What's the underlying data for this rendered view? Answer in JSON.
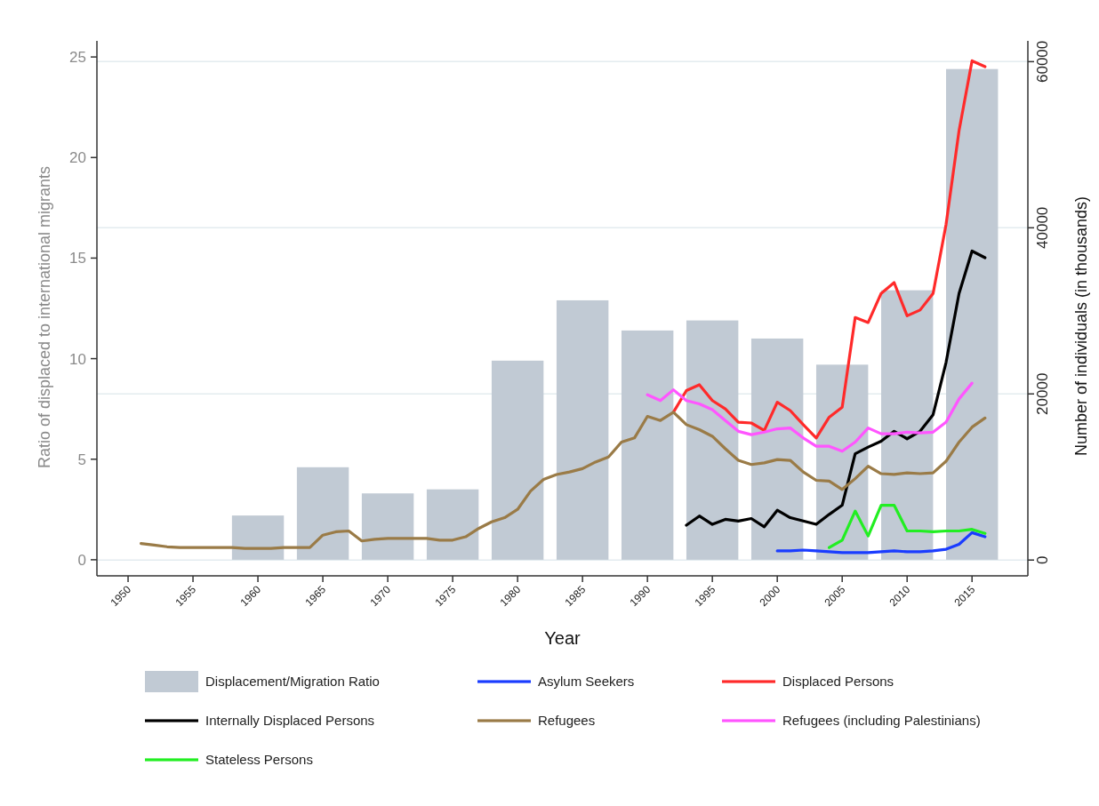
{
  "chart_data": {
    "type": "line",
    "xlabel": "Year",
    "ylabel": "Ratio of displaced to international migrants",
    "y2label": "Number of individuals (in thousands)",
    "xlim": [
      1947.6,
      2019.3
    ],
    "xticks": [
      1950,
      1955,
      1960,
      1965,
      1970,
      1975,
      1980,
      1985,
      1990,
      1995,
      2000,
      2005,
      2010,
      2015
    ],
    "ylim": [
      -0.8,
      25.8
    ],
    "yticks": [
      0,
      5,
      10,
      15,
      20,
      25
    ],
    "y2lim": [
      -1900,
      62500
    ],
    "y2ticks": [
      0,
      20000,
      40000,
      60000
    ],
    "grid": "y",
    "legend": "bottom",
    "line_style": "solid",
    "series": [
      {
        "name": "Displacement/Migration Ratio",
        "type": "bar",
        "axis": "y",
        "color": "#c1cad4",
        "x": [
          1960,
          1965,
          1970,
          1975,
          1980,
          1985,
          1990,
          1995,
          2000,
          2005,
          2010,
          2015
        ],
        "values": [
          2.2,
          4.6,
          3.3,
          3.5,
          9.9,
          12.9,
          11.4,
          11.9,
          11.0,
          9.7,
          13.4,
          24.4
        ]
      },
      {
        "name": "Asylum Seekers",
        "axis": "y2",
        "color": "#1a3cff",
        "x": [
          2000,
          2001,
          2002,
          2003,
          2004,
          2005,
          2006,
          2007,
          2008,
          2009,
          2010,
          2011,
          2012,
          2013,
          2014,
          2015,
          2016
        ],
        "values": [
          1100,
          1100,
          1200,
          1100,
          1000,
          900,
          900,
          900,
          1000,
          1100,
          1000,
          1000,
          1100,
          1300,
          1900,
          3300,
          2800
        ]
      },
      {
        "name": "Displaced Persons",
        "axis": "y2",
        "color": "#ff2a2a",
        "x": [
          1992,
          1993,
          1994,
          1995,
          1996,
          1997,
          1998,
          1999,
          2000,
          2001,
          2002,
          2003,
          2004,
          2005,
          2006,
          2007,
          2008,
          2009,
          2010,
          2011,
          2012,
          2013,
          2014,
          2015,
          2016
        ],
        "values": [
          17800,
          20400,
          21100,
          19200,
          18200,
          16600,
          16500,
          15600,
          19000,
          18000,
          16300,
          14700,
          17200,
          18400,
          29200,
          28600,
          32100,
          33400,
          29400,
          30100,
          32100,
          40400,
          51700,
          60100,
          59400
        ]
      },
      {
        "name": "Internally Displaced Persons",
        "axis": "y2",
        "color": "#000000",
        "x": [
          1993,
          1994,
          1995,
          1996,
          1997,
          1998,
          1999,
          2000,
          2001,
          2002,
          2003,
          2004,
          2005,
          2006,
          2007,
          2008,
          2009,
          2010,
          2011,
          2012,
          2013,
          2014,
          2015,
          2016
        ],
        "values": [
          4200,
          5300,
          4300,
          4900,
          4700,
          5000,
          4000,
          6000,
          5100,
          4700,
          4300,
          5500,
          6600,
          12800,
          13600,
          14300,
          15500,
          14600,
          15500,
          17500,
          23800,
          32100,
          37200,
          36400
        ]
      },
      {
        "name": "Refugees",
        "axis": "y2",
        "color": "#9a7b47",
        "x": [
          1951,
          1952,
          1953,
          1954,
          1955,
          1956,
          1957,
          1958,
          1959,
          1960,
          1961,
          1962,
          1963,
          1964,
          1965,
          1966,
          1967,
          1968,
          1969,
          1970,
          1971,
          1972,
          1973,
          1974,
          1975,
          1976,
          1977,
          1978,
          1979,
          1980,
          1981,
          1982,
          1983,
          1984,
          1985,
          1986,
          1987,
          1988,
          1989,
          1990,
          1991,
          1992,
          1993,
          1994,
          1995,
          1996,
          1997,
          1998,
          1999,
          2000,
          2001,
          2002,
          2003,
          2004,
          2005,
          2006,
          2007,
          2008,
          2009,
          2010,
          2011,
          2012,
          2013,
          2014,
          2015,
          2016
        ],
        "values": [
          2000,
          1800,
          1600,
          1500,
          1500,
          1500,
          1500,
          1500,
          1400,
          1400,
          1400,
          1500,
          1500,
          1500,
          3000,
          3400,
          3500,
          2300,
          2500,
          2600,
          2600,
          2600,
          2600,
          2400,
          2400,
          2800,
          3800,
          4600,
          5100,
          6100,
          8300,
          9700,
          10300,
          10600,
          11000,
          11800,
          12400,
          14200,
          14700,
          17300,
          16800,
          17800,
          16300,
          15700,
          14900,
          13400,
          12000,
          11500,
          11700,
          12100,
          12000,
          10600,
          9600,
          9500,
          8500,
          9800,
          11300,
          10400,
          10300,
          10500,
          10400,
          10500,
          11900,
          14200,
          16000,
          17100
        ]
      },
      {
        "name": "Refugees (including Palestinians)",
        "axis": "y2",
        "color": "#ff55ff",
        "x": [
          1990,
          1991,
          1992,
          1993,
          1994,
          1995,
          1996,
          1997,
          1998,
          1999,
          2000,
          2001,
          2002,
          2003,
          2004,
          2005,
          2006,
          2007,
          2008,
          2009,
          2010,
          2011,
          2012,
          2013,
          2014,
          2015
        ],
        "values": [
          19900,
          19200,
          20500,
          19200,
          18800,
          18100,
          16800,
          15500,
          15100,
          15400,
          15800,
          15900,
          14700,
          13700,
          13700,
          13100,
          14200,
          15900,
          15200,
          15200,
          15400,
          15300,
          15400,
          16600,
          19400,
          21300
        ]
      },
      {
        "name": "Stateless Persons",
        "axis": "y2",
        "color": "#22ee22",
        "x": [
          2004,
          2005,
          2006,
          2007,
          2008,
          2009,
          2010,
          2011,
          2012,
          2013,
          2014,
          2015,
          2016
        ],
        "values": [
          1500,
          2400,
          5900,
          2900,
          6600,
          6600,
          3500,
          3500,
          3400,
          3500,
          3500,
          3700,
          3200
        ]
      }
    ]
  }
}
